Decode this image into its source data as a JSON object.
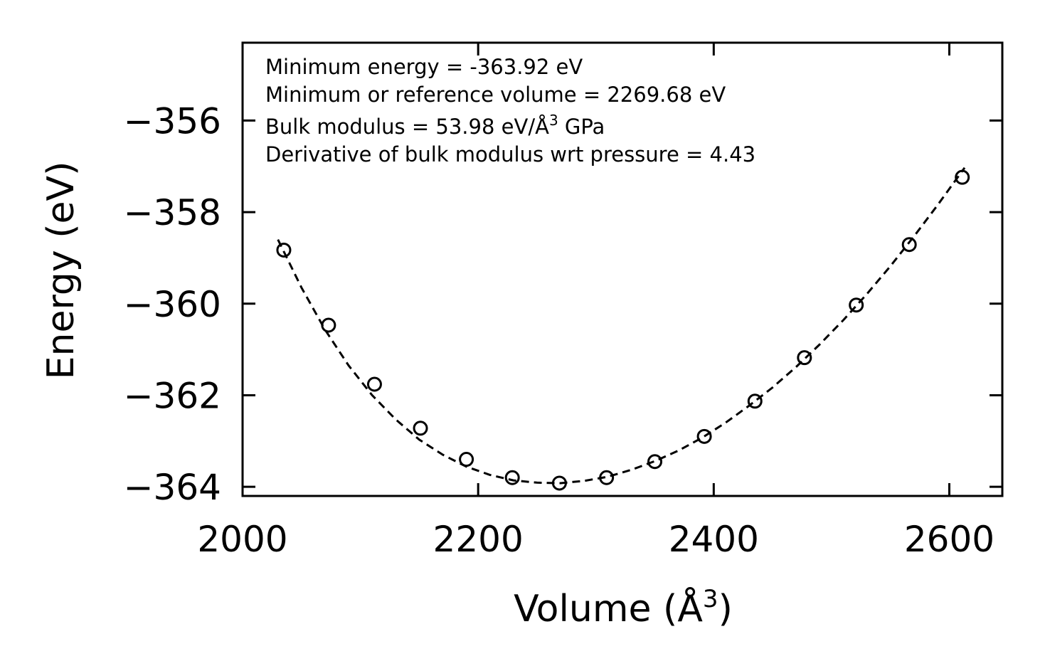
{
  "chart_data": {
    "type": "scatter",
    "xlabel": "Volume (Å",
    "xlabel_sup": "3",
    "xlabel_end": ")",
    "ylabel": "Energy (eV)",
    "xlim": [
      2000,
      2645
    ],
    "ylim": [
      -364.2,
      -354.3
    ],
    "xticks": [
      2000,
      2200,
      2400,
      2600
    ],
    "xtick_labels": [
      "2000",
      "2200",
      "2400",
      "2600"
    ],
    "yticks": [
      -356,
      -358,
      -360,
      -362,
      -364
    ],
    "ytick_labels": [
      "−356",
      "−358",
      "−360",
      "−362",
      "−364"
    ],
    "series": [
      {
        "name": "data",
        "marker": "open-circle",
        "x": [
          2035,
          2073,
          2112,
          2151,
          2190,
          2229,
          2269,
          2309,
          2350,
          2392,
          2435,
          2477,
          2521,
          2566,
          2611
        ],
        "y": [
          -358.83,
          -360.47,
          -361.76,
          -362.72,
          -363.4,
          -363.8,
          -363.92,
          -363.8,
          -363.45,
          -362.9,
          -362.13,
          -361.18,
          -360.03,
          -358.71,
          -357.24
        ]
      }
    ],
    "fit": {
      "name": "fit",
      "style": "dashed",
      "x": [
        2030,
        2050,
        2070,
        2090,
        2110,
        2130,
        2150,
        2170,
        2190,
        2210,
        2230,
        2250,
        2270,
        2290,
        2310,
        2330,
        2350,
        2370,
        2390,
        2410,
        2430,
        2450,
        2470,
        2490,
        2510,
        2530,
        2550,
        2570,
        2590,
        2613
      ],
      "y": [
        -358.6,
        -359.65,
        -360.57,
        -361.35,
        -362.0,
        -362.53,
        -362.97,
        -363.3,
        -363.56,
        -363.74,
        -363.86,
        -363.91,
        -363.92,
        -363.87,
        -363.78,
        -363.63,
        -363.44,
        -363.21,
        -362.93,
        -362.6,
        -362.23,
        -361.83,
        -361.38,
        -360.89,
        -360.36,
        -359.79,
        -359.18,
        -358.53,
        -357.85,
        -357.03
      ]
    },
    "annotations": [
      {
        "text": "Minimum energy = -363.92 eV"
      },
      {
        "text": "Minimum or reference volume = 2269.68 eV"
      },
      {
        "text": "Bulk modulus = 53.98 eV/Å",
        "sup": "3",
        "tail": " GPa"
      },
      {
        "text": "Derivative of bulk modulus wrt pressure = 4.43"
      }
    ],
    "colors": {
      "line": "#000000",
      "marker": "#000000",
      "background": "#ffffff"
    }
  }
}
